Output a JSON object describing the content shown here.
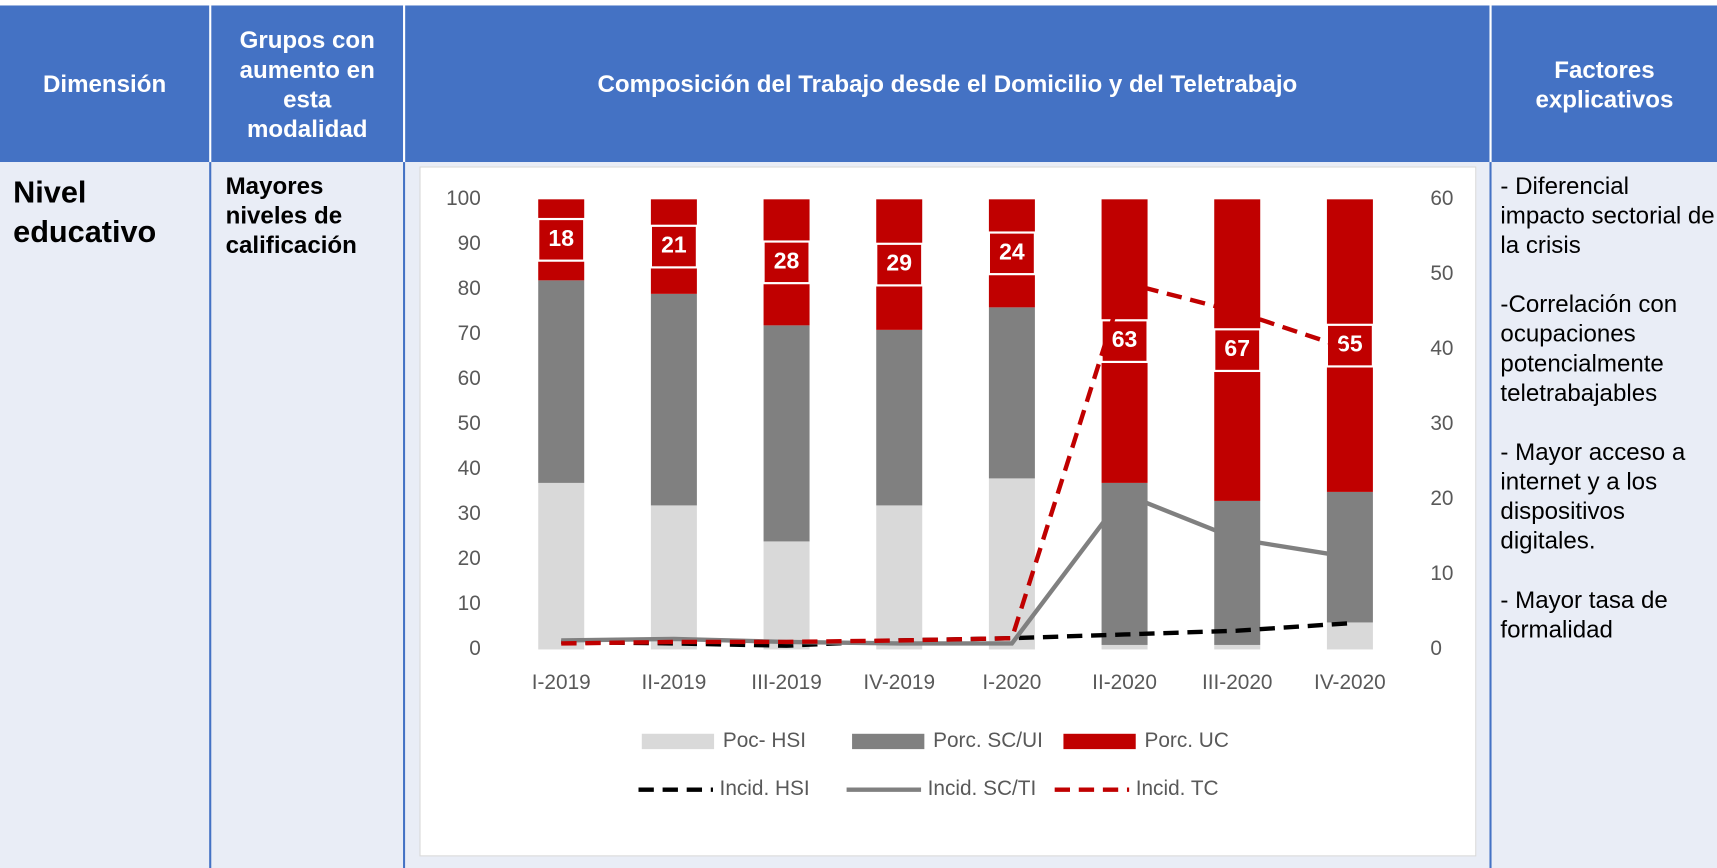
{
  "header": {
    "columns": [
      "Dimensión",
      "Grupos con aumento en esta modalidad",
      "Composición del Trabajo desde el Domicilio y del Teletrabajo",
      "Factores explicativos"
    ]
  },
  "table": {
    "rows": [
      {
        "dimension": "Nivel educativo",
        "groups": "Mayores niveles de calificación",
        "factors": [
          "- Diferencial impacto sectorial de la crisis",
          "-Correlación con ocupaciones potencialmente teletrabajables",
          "- Mayor acceso a internet y a los dispositivos digitales.",
          "- Mayor tasa de formalidad"
        ]
      }
    ]
  },
  "chart_data": {
    "type": "bar",
    "stacked": true,
    "categories": [
      "I-2019",
      "II-2019",
      "III-2019",
      "IV-2019",
      "I-2020",
      "II-2020",
      "III-2020",
      "IV-2020"
    ],
    "ylim": [
      0,
      100
    ],
    "yticks": [
      0,
      10,
      20,
      30,
      40,
      50,
      60,
      70,
      80,
      90,
      100
    ],
    "y2lim": [
      0,
      60
    ],
    "y2ticks": [
      0,
      10,
      20,
      30,
      40,
      50,
      60
    ],
    "series": [
      {
        "name": "Poc- HSI",
        "type": "bar",
        "color": "#d9d9d9",
        "values": [
          37,
          32,
          24,
          32,
          38,
          1,
          1,
          6
        ]
      },
      {
        "name": "Porc. SC/UI",
        "type": "bar",
        "color": "#808080",
        "values": [
          45,
          47,
          48,
          39,
          38,
          36,
          32,
          29
        ]
      },
      {
        "name": "Porc. UC",
        "type": "bar",
        "color": "#c00000",
        "data_labels": true,
        "values": [
          18,
          21,
          28,
          29,
          24,
          63,
          67,
          65
        ]
      },
      {
        "name": "Incid. HSI",
        "type": "line",
        "axis": "y2",
        "dashed": true,
        "color": "#000000",
        "values": [
          1,
          0.8,
          0.5,
          1.2,
          1.5,
          2,
          2.5,
          3.5
        ]
      },
      {
        "name": "Incid. SC/TI",
        "type": "line",
        "axis": "y2",
        "dashed": false,
        "color": "#808080",
        "values": [
          1.2,
          1.4,
          1,
          0.8,
          0.8,
          20.7,
          14.7,
          12.3
        ]
      },
      {
        "name": "Incid. TC",
        "type": "line",
        "axis": "y2",
        "dashed": true,
        "color": "#c00000",
        "values": [
          0.8,
          1,
          1,
          1.2,
          1.5,
          48.9,
          45,
          40
        ]
      }
    ]
  }
}
